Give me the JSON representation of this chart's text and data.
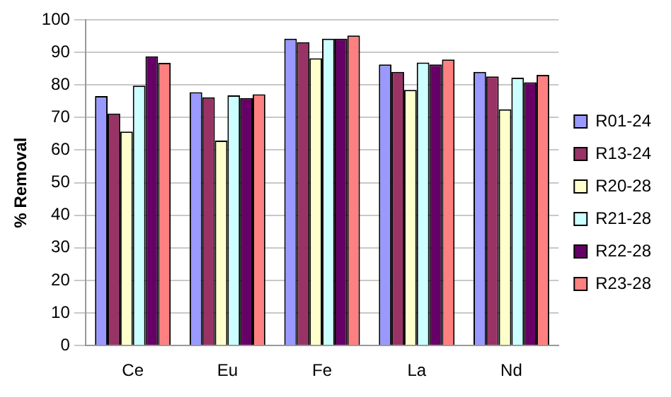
{
  "chart_data": {
    "type": "bar",
    "ylabel": "% Removal",
    "categories": [
      "Ce",
      "Eu",
      "Fe",
      "La",
      "Nd"
    ],
    "series": [
      {
        "name": "R01-24",
        "color": "#9999ff",
        "values": [
          76.6,
          77.8,
          94.2,
          86.3,
          84
        ]
      },
      {
        "name": "R13-24",
        "color": "#993366",
        "values": [
          71.2,
          76.2,
          93.1,
          84,
          82.6
        ]
      },
      {
        "name": "R20-28",
        "color": "#ffffcc",
        "values": [
          65.7,
          62.9,
          88.2,
          78.5,
          72.5
        ]
      },
      {
        "name": "R21-28",
        "color": "#ccffff",
        "values": [
          79.8,
          76.8,
          94.2,
          86.9,
          82.2
        ]
      },
      {
        "name": "R22-28",
        "color": "#660066",
        "values": [
          88.8,
          76,
          94.2,
          86.3,
          80.8
        ]
      },
      {
        "name": "R23-28",
        "color": "#ff8080",
        "values": [
          86.8,
          77.1,
          95.2,
          87.8,
          83.1
        ]
      }
    ],
    "ylim": [
      0,
      100
    ],
    "yticks": [
      0,
      10,
      20,
      30,
      40,
      50,
      60,
      70,
      80,
      90,
      100
    ],
    "grid": "y",
    "legend": "right"
  }
}
